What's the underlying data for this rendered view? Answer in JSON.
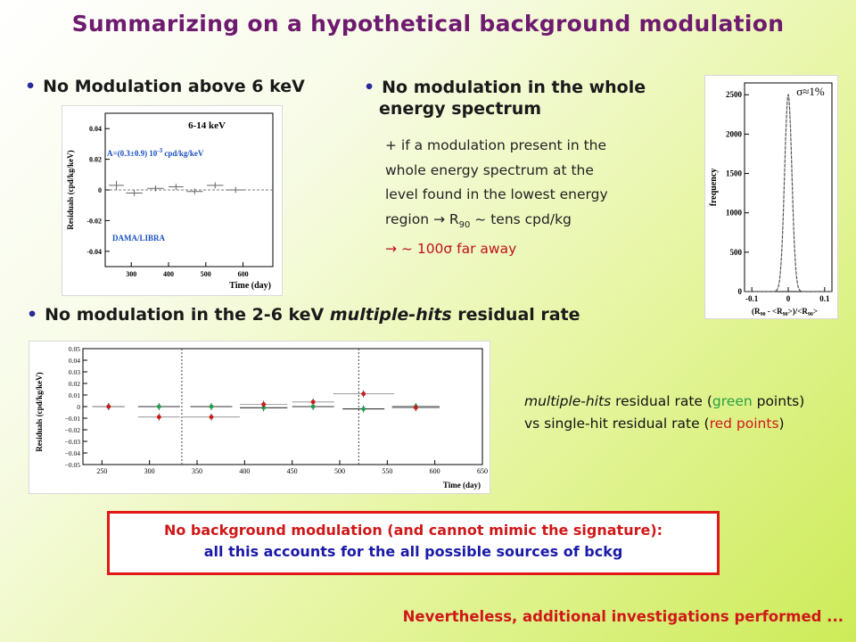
{
  "title": "Summarizing on a hypothetical background modulation",
  "bullets": {
    "b1": "No Modulation above 6 keV",
    "b2_line1": "No modulation in the whole",
    "b2_line2": "energy spectrum",
    "b3_prefix": "No modulation in the 2-6 keV ",
    "b3_italic": "multiple-hits",
    "b3_suffix": " residual rate"
  },
  "note_spectrum": {
    "line1": "+ if a modulation present in the",
    "line2": "whole energy spectrum at the",
    "line3": "level found in the lowest energy",
    "line4_a": "region → R",
    "line4_sub": "90",
    "line4_b": " ~ tens cpd/kg",
    "line5": "→ ~ 100σ far away"
  },
  "note_multihits": {
    "italic": "multiple-hits",
    "t1": " residual rate (",
    "green_word": "green",
    "t2": " points) vs single-hit residual rate (",
    "red_word": "red points",
    "t3": ")"
  },
  "boxed": {
    "line1": "No background modulation (and cannot mimic the signature):",
    "line2": "all this accounts for the all possible sources of bckg"
  },
  "footer": "Nevertheless, additional investigations performed ...",
  "colors": {
    "title": "#6e1a6e",
    "red": "#d01818",
    "blue": "#1a1aa8",
    "green": "#2aa040"
  },
  "chart_data": [
    {
      "type": "scatter",
      "title": "6-14 keV",
      "annotation_main": "A=(0.3±0.9) 10",
      "annotation_exp": "-3",
      "annotation_unit": " cpd/kg/keV",
      "label": "DAMA/LIBRA",
      "xlabel": "Time (day)",
      "ylabel": "Residuals (cpd/kg/keV)",
      "xlim": [
        230,
        680
      ],
      "ylim": [
        -0.05,
        0.05
      ],
      "xticks": [
        300,
        400,
        500,
        600
      ],
      "yticks": [
        0.04,
        0.02,
        0,
        -0.02,
        -0.04
      ],
      "ytick_labels": [
        "0.04",
        "0.02",
        "0",
        "-0.02",
        "-0.04"
      ],
      "points": [
        {
          "x": 260,
          "y": 0.003,
          "xerr": 20,
          "yerr": 0.003
        },
        {
          "x": 308,
          "y": -0.002,
          "xerr": 22,
          "yerr": 0.002
        },
        {
          "x": 365,
          "y": 0.001,
          "xerr": 22,
          "yerr": 0.002
        },
        {
          "x": 420,
          "y": 0.002,
          "xerr": 20,
          "yerr": 0.002
        },
        {
          "x": 470,
          "y": -0.001,
          "xerr": 22,
          "yerr": 0.002
        },
        {
          "x": 525,
          "y": 0.003,
          "xerr": 22,
          "yerr": 0.002
        },
        {
          "x": 580,
          "y": 0.0,
          "xerr": 24,
          "yerr": 0.002
        }
      ]
    },
    {
      "type": "scatter",
      "xlabel": "(R",
      "xlabel_sub1": "90",
      "xlabel_mid": " - <R",
      "xlabel_sub2": "90",
      "xlabel_end": ">)/<R",
      "xlabel_sub3": "90",
      "xlabel_close": ">",
      "ylabel": "frequency",
      "annotation": "σ≈1%",
      "xlim": [
        -0.12,
        0.12
      ],
      "ylim": [
        0,
        2650
      ],
      "xticks": [
        -0.1,
        0,
        0.1
      ],
      "xtick_labels": [
        "-0.1",
        "0",
        "0.1"
      ],
      "yticks": [
        0,
        500,
        1000,
        1500,
        2000,
        2500
      ],
      "ytick_labels": [
        "0",
        "500",
        "1000",
        "1500",
        "2000",
        "2500"
      ],
      "peak_center": 0.0,
      "peak_height": 2500,
      "peak_sigma": 0.01
    },
    {
      "type": "scatter",
      "xlabel": "Time (day)",
      "ylabel": "Residuals (cpd/kg/keV)",
      "xlim": [
        230,
        650
      ],
      "ylim": [
        -0.05,
        0.05
      ],
      "xticks": [
        250,
        300,
        350,
        400,
        450,
        500,
        550,
        600,
        650
      ],
      "yticks": [
        0.05,
        0.04,
        0.03,
        0.02,
        0.01,
        0,
        -0.01,
        -0.02,
        -0.03,
        -0.04,
        -0.05
      ],
      "ytick_labels": [
        "0.05",
        "0.04",
        "0.03",
        "0.02",
        "0.01",
        "0",
        "−0.01",
        "−0.02",
        "−0.03",
        "−0.04",
        "−0.05"
      ],
      "vlines": [
        334,
        520
      ],
      "series": [
        {
          "name": "multiple-hits",
          "color": "#22a050",
          "x": [
            257,
            310,
            365,
            420,
            472,
            525,
            580
          ],
          "y": [
            0.0,
            0.0,
            0.0,
            -0.001,
            0.0,
            -0.002,
            0.0
          ],
          "xerr": [
            17,
            22,
            22,
            25,
            22,
            22,
            25
          ]
        },
        {
          "name": "single-hit",
          "color": "#d01818",
          "x": [
            257,
            310,
            365,
            420,
            472,
            525,
            580
          ],
          "y": [
            0.0,
            -0.009,
            -0.009,
            0.002,
            0.004,
            0.011,
            -0.001
          ],
          "xerr": [
            17,
            22,
            30,
            25,
            22,
            32,
            25
          ]
        }
      ]
    }
  ]
}
